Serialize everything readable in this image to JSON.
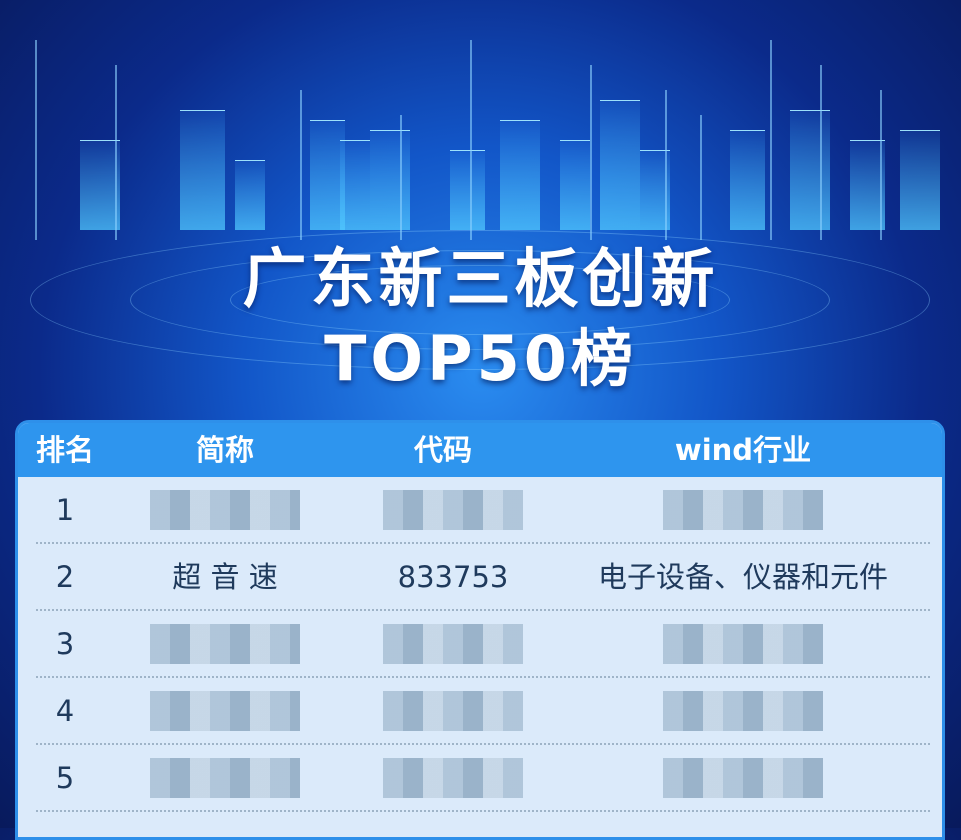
{
  "title": {
    "line1": "广东新三板创新",
    "line2": "TOP50榜"
  },
  "table": {
    "headers": [
      "排名",
      "简称",
      "代码",
      "wind行业"
    ],
    "rows": [
      {
        "rank": "1",
        "name": null,
        "code": null,
        "industry": null,
        "blurred": true
      },
      {
        "rank": "2",
        "name": "超 音 速",
        "code": "833753",
        "industry": "电子设备、仪器和元件",
        "blurred": false
      },
      {
        "rank": "3",
        "name": null,
        "code": null,
        "industry": null,
        "blurred": true
      },
      {
        "rank": "4",
        "name": null,
        "code": null,
        "industry": null,
        "blurred": true
      },
      {
        "rank": "5",
        "name": null,
        "code": null,
        "industry": null,
        "blurred": true
      }
    ]
  },
  "colors": {
    "header": "#2e95ee",
    "body": "#dbeafa",
    "text": "#1f3a5c"
  }
}
